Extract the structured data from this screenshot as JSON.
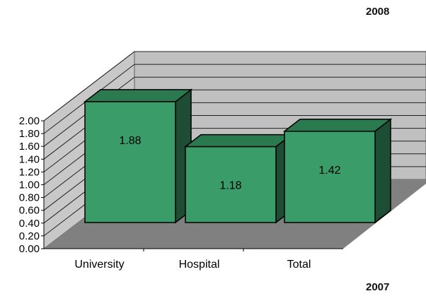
{
  "chart_data": {
    "type": "bar",
    "categories": [
      "University",
      "Hospital",
      "Total"
    ],
    "values": [
      1.88,
      1.18,
      1.42
    ],
    "data_labels": [
      "1.88",
      "1.18",
      "1.42"
    ],
    "yticks": [
      "0.00",
      "0.20",
      "0.40",
      "0.60",
      "0.80",
      "1.00",
      "1.20",
      "1.40",
      "1.60",
      "1.80",
      "2.00"
    ],
    "ylim": [
      0,
      2
    ],
    "title": "",
    "xlabel": "",
    "ylabel": "",
    "grid": true,
    "legend": "none",
    "style": "3d",
    "colors": {
      "bar_front": "#3a9c68",
      "bar_top": "#2b7a4f",
      "bar_side": "#1e4d35",
      "back_wall": "#c0c0c0",
      "side_wall": "#c8c8c8",
      "floor": "#808080",
      "gridline": "#202020"
    }
  },
  "annotations": {
    "top_year": "2008",
    "bottom_year": "2007"
  }
}
